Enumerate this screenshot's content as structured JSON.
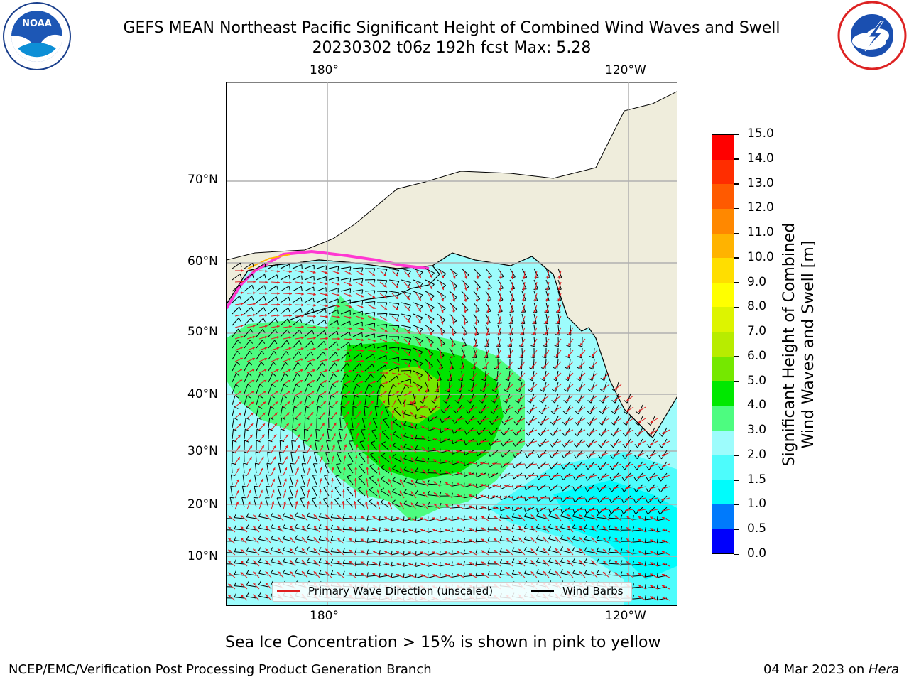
{
  "title": {
    "line1": "GEFS MEAN Northeast Pacific Significant Height of Combined Wind Waves and Swell",
    "line2": "20230302 t06z 192h fcst   Max: 5.28"
  },
  "logos": {
    "left": "NOAA",
    "right": "NATIONAL WEATHER SERVICE"
  },
  "map": {
    "lon_labels": [
      "180°",
      "120°W"
    ],
    "lat_labels": [
      "70°N",
      "60°N",
      "50°N",
      "40°N",
      "30°N",
      "20°N",
      "10°N"
    ],
    "grid": true,
    "legend": {
      "wave": "Primary Wave Direction (unscaled)",
      "barbs": "Wind Barbs"
    },
    "colors": {
      "land": "#efeddc",
      "ocean_low": "#9dfcfc",
      "ocean_mid": "#4dfc80",
      "ocean_high": "#00e000"
    }
  },
  "colorbar": {
    "label_line1": "Significant Height of Combined",
    "label_line2": "Wind Waves and Swell [m]",
    "ticks": [
      "15.0",
      "14.0",
      "13.0",
      "12.0",
      "11.0",
      "10.0",
      "9.0",
      "8.0",
      "7.0",
      "6.0",
      "5.0",
      "4.0",
      "3.0",
      "2.0",
      "1.5",
      "1.0",
      "0.5",
      "0.0"
    ],
    "colors": [
      "#ff0000",
      "#ff2d00",
      "#ff5a00",
      "#ff8800",
      "#ffb300",
      "#ffde00",
      "#ffff00",
      "#ddf400",
      "#b8ec00",
      "#75e800",
      "#00e800",
      "#4dfc80",
      "#9dfcfc",
      "#4dfcfc",
      "#00fcfc",
      "#007afc",
      "#0000fc"
    ]
  },
  "footer": {
    "note": "Sea Ice Concentration > 15% is shown in pink to yellow",
    "left": "NCEP/EMC/Verification Post Processing Product Generation Branch",
    "date": "04 Mar 2023 on ",
    "machine": "Hera"
  }
}
